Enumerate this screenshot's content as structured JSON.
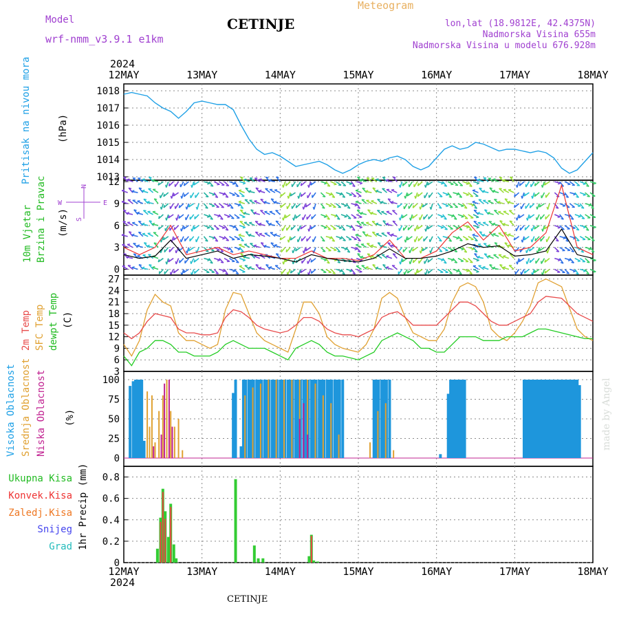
{
  "header": {
    "model_label": "Model",
    "model_name": "wrf-nmm_v3.9.1 e1km",
    "station": "CETINJE",
    "product": "Meteogram",
    "lonlat": "lon,lat (18.9812E, 42.4375N)",
    "elevation": "Nadmorska Visina 655m",
    "model_elevation": "Nadmorska Visina u modelu 676.928m",
    "year_top": "2024",
    "year_bottom": "2024",
    "footer_station": "CETINJE",
    "watermark": "made by Angel"
  },
  "colors": {
    "pressure": "#1ea0e6",
    "wind_label": "#22bb22",
    "wind_speed": "#000000",
    "gust": "#ee3333",
    "t2m": "#e84a4a",
    "sfc": "#e0a030",
    "dewpt": "#22cc22",
    "high_cloud": "#1e96dc",
    "mid_cloud": "#e0a030",
    "low_cloud": "#c02090",
    "total_precip": "#33cc33",
    "conv_precip": "#ee4444",
    "frozen": "#ee7722",
    "snow": "#4444ee",
    "hail": "#22bbbb",
    "purple_text": "#a040d0",
    "orange_text": "#e8b060"
  },
  "chart_data": [
    {
      "type": "line",
      "panel": "pressure",
      "ylabel": "Pritisak na nivou mora",
      "unit": "(hPa)",
      "ylim": [
        1012.8,
        1018.4
      ],
      "yticks": [
        "1013",
        "1014",
        "1015",
        "1016",
        "1017",
        "1018"
      ],
      "xlabels": [
        "12MAY",
        "13MAY",
        "14MAY",
        "15MAY",
        "16MAY",
        "17MAY",
        "18MAY"
      ],
      "grid": true,
      "series": [
        {
          "x": [
            0,
            0.1,
            0.2,
            0.3,
            0.4,
            0.5,
            0.6,
            0.7,
            0.8,
            0.9,
            1.0,
            1.1,
            1.2,
            1.3,
            1.4,
            1.5,
            1.6,
            1.7,
            1.8,
            1.9,
            2.0,
            2.1,
            2.2,
            2.3,
            2.4,
            2.5,
            2.6,
            2.7,
            2.8,
            2.9,
            3.0,
            3.1,
            3.2,
            3.3,
            3.4,
            3.5,
            3.6,
            3.7,
            3.8,
            3.9,
            4.0,
            4.1,
            4.2,
            4.3,
            4.4,
            4.5,
            4.6,
            4.7,
            4.8,
            4.9,
            5.0,
            5.1,
            5.2,
            5.3,
            5.4,
            5.5,
            5.6,
            5.7,
            5.8,
            5.9,
            6.0
          ],
          "y": [
            1017.8,
            1017.9,
            1017.8,
            1017.7,
            1017.3,
            1017.0,
            1016.8,
            1016.4,
            1016.8,
            1017.3,
            1017.4,
            1017.3,
            1017.2,
            1017.2,
            1016.9,
            1016.0,
            1015.2,
            1014.6,
            1014.3,
            1014.4,
            1014.2,
            1013.9,
            1013.6,
            1013.7,
            1013.8,
            1013.9,
            1013.7,
            1013.4,
            1013.2,
            1013.4,
            1013.7,
            1013.9,
            1014.0,
            1013.9,
            1014.1,
            1014.2,
            1014.0,
            1013.6,
            1013.4,
            1013.6,
            1014.1,
            1014.6,
            1014.8,
            1014.6,
            1014.7,
            1015.0,
            1014.9,
            1014.7,
            1014.5,
            1014.6,
            1014.6,
            1014.5,
            1014.4,
            1014.5,
            1014.4,
            1014.1,
            1013.5,
            1013.2,
            1013.4,
            1013.9,
            1014.4
          ]
        }
      ]
    },
    {
      "type": "line",
      "panel": "wind",
      "ylabel": "10m Vjetar Brzina i Pravac",
      "unit": "(m/s)",
      "ylim": [
        -0.8,
        12.2
      ],
      "yticks": [
        "0",
        "3",
        "6",
        "9",
        "12"
      ],
      "compass": "N",
      "series": [
        {
          "name": "speed",
          "x": [
            0,
            0.2,
            0.4,
            0.6,
            0.8,
            1.0,
            1.2,
            1.4,
            1.6,
            1.8,
            2.0,
            2.2,
            2.4,
            2.6,
            2.8,
            3.0,
            3.2,
            3.4,
            3.6,
            3.8,
            4.0,
            4.2,
            4.4,
            4.6,
            4.8,
            5.0,
            5.2,
            5.4,
            5.6,
            5.8,
            6.0
          ],
          "y": [
            2.0,
            1.5,
            1.8,
            4.0,
            1.5,
            2.0,
            2.5,
            1.5,
            2.0,
            1.8,
            1.5,
            1.0,
            2.0,
            1.5,
            1.2,
            1.0,
            1.5,
            2.8,
            1.5,
            1.5,
            1.8,
            2.5,
            3.5,
            3.0,
            3.2,
            1.8,
            2.0,
            2.5,
            5.5,
            2.0,
            1.5
          ]
        },
        {
          "name": "gust",
          "x": [
            0,
            0.2,
            0.4,
            0.6,
            0.8,
            1.0,
            1.2,
            1.4,
            1.6,
            1.8,
            2.0,
            2.2,
            2.4,
            2.6,
            2.8,
            3.0,
            3.2,
            3.4,
            3.6,
            3.8,
            4.0,
            4.2,
            4.4,
            4.6,
            4.8,
            5.0,
            5.2,
            5.4,
            5.6,
            5.8,
            6.0
          ],
          "y": [
            3.0,
            2.0,
            3.0,
            6.0,
            2.0,
            2.5,
            3.0,
            2.0,
            2.5,
            2.0,
            1.5,
            1.5,
            2.5,
            1.5,
            1.5,
            1.2,
            2.0,
            4.0,
            1.5,
            1.5,
            2.5,
            5.0,
            6.5,
            4.0,
            6.0,
            2.5,
            3.0,
            5.0,
            11.5,
            3.0,
            2.0
          ]
        }
      ]
    },
    {
      "type": "line",
      "panel": "temperature",
      "labels": [
        "2m Temp",
        "SFC Temp",
        "dewpt Temp"
      ],
      "unit": "(C)",
      "ylim": [
        3,
        28
      ],
      "yticks": [
        "3",
        "6",
        "9",
        "12",
        "15",
        "18",
        "21",
        "24",
        "27"
      ],
      "series": [
        {
          "name": "2m Temp",
          "x": [
            0,
            0.1,
            0.2,
            0.3,
            0.4,
            0.5,
            0.6,
            0.7,
            0.8,
            0.9,
            1.0,
            1.1,
            1.2,
            1.3,
            1.4,
            1.5,
            1.6,
            1.7,
            1.8,
            1.9,
            2.0,
            2.1,
            2.2,
            2.3,
            2.4,
            2.5,
            2.6,
            2.7,
            2.8,
            2.9,
            3.0,
            3.1,
            3.2,
            3.3,
            3.4,
            3.5,
            3.6,
            3.7,
            3.8,
            3.9,
            4.0,
            4.1,
            4.2,
            4.3,
            4.4,
            4.5,
            4.6,
            4.7,
            4.8,
            4.9,
            5.0,
            5.1,
            5.2,
            5.3,
            5.4,
            5.6,
            5.8,
            5.9,
            6.0
          ],
          "y": [
            13,
            11.5,
            13,
            16,
            18,
            17.5,
            17,
            14,
            13,
            13,
            12.5,
            12.5,
            13,
            17,
            19,
            18.5,
            17,
            15,
            14,
            13.5,
            13,
            13.5,
            15,
            17,
            17,
            16,
            14,
            13,
            12.5,
            12.5,
            12,
            13,
            14,
            17,
            18,
            18.5,
            17,
            15,
            15,
            15,
            15,
            17,
            19,
            21,
            21,
            20,
            18,
            16,
            15,
            15,
            16,
            17,
            18,
            21,
            22.5,
            22,
            18,
            17,
            16
          ]
        },
        {
          "name": "SFC Temp",
          "x": [
            0,
            0.1,
            0.2,
            0.3,
            0.4,
            0.5,
            0.6,
            0.7,
            0.8,
            0.9,
            1.0,
            1.1,
            1.2,
            1.3,
            1.4,
            1.5,
            1.6,
            1.7,
            1.8,
            1.9,
            2.0,
            2.1,
            2.2,
            2.3,
            2.4,
            2.5,
            2.6,
            2.7,
            2.8,
            2.9,
            3.0,
            3.1,
            3.2,
            3.3,
            3.4,
            3.5,
            3.6,
            3.7,
            3.8,
            3.9,
            4.0,
            4.1,
            4.2,
            4.3,
            4.4,
            4.5,
            4.6,
            4.7,
            4.8,
            4.9,
            5.0,
            5.1,
            5.2,
            5.3,
            5.4,
            5.6,
            5.8,
            5.9,
            6.0
          ],
          "y": [
            10,
            7,
            11,
            19,
            23,
            21,
            20,
            13,
            11,
            11,
            10,
            9,
            10,
            19,
            23.5,
            23,
            18,
            13,
            11,
            10,
            9,
            8,
            14,
            21,
            21,
            18,
            12,
            10,
            9,
            8.5,
            8,
            10,
            14,
            22,
            23.5,
            22,
            17,
            13,
            12,
            11,
            11,
            14,
            21,
            25,
            26,
            25,
            21,
            14,
            12,
            11,
            13,
            16,
            20,
            26,
            27,
            25,
            14,
            12,
            11
          ]
        },
        {
          "name": "dewpt Temp",
          "x": [
            0,
            0.1,
            0.2,
            0.3,
            0.4,
            0.5,
            0.6,
            0.7,
            0.8,
            0.9,
            1.0,
            1.1,
            1.2,
            1.3,
            1.4,
            1.5,
            1.6,
            1.7,
            1.8,
            1.9,
            2.0,
            2.1,
            2.2,
            2.3,
            2.4,
            2.5,
            2.6,
            2.7,
            2.8,
            2.9,
            3.0,
            3.1,
            3.2,
            3.3,
            3.4,
            3.5,
            3.6,
            3.7,
            3.8,
            3.9,
            4.0,
            4.1,
            4.2,
            4.3,
            4.4,
            4.5,
            4.6,
            4.7,
            4.8,
            4.9,
            5.0,
            5.1,
            5.2,
            5.3,
            5.4,
            5.6,
            5.8,
            5.9,
            6.0
          ],
          "y": [
            7,
            4.5,
            8,
            9,
            11,
            11,
            10,
            8,
            8,
            7,
            7,
            7,
            8,
            10,
            11,
            10,
            9,
            9,
            9,
            8,
            7,
            6,
            9,
            10,
            11,
            10,
            8,
            7,
            7,
            6.5,
            6,
            7,
            8,
            11,
            12,
            13,
            12,
            11,
            9,
            9,
            8,
            8,
            10,
            12,
            12,
            12,
            11,
            11,
            11,
            12,
            12,
            12,
            13,
            14,
            14,
            13,
            12,
            11.5,
            11.5
          ]
        }
      ]
    },
    {
      "type": "bar",
      "panel": "clouds",
      "labels": [
        "Visoka Oblacnost",
        "Srednja Oblacnost",
        "Niska Oblacnost"
      ],
      "unit": "(%)",
      "ylim": [
        0,
        100
      ],
      "yticks": [
        "0",
        "25",
        "50",
        "75",
        "100"
      ],
      "series": [
        {
          "name": "Visoka Oblacnost",
          "x": [
            0.08,
            0.12,
            0.15,
            0.18,
            0.2,
            0.23,
            0.26,
            1.4,
            1.43,
            1.5,
            1.53,
            1.56,
            1.6,
            1.63,
            1.66,
            1.7,
            1.73,
            1.76,
            1.8,
            1.83,
            1.86,
            1.9,
            1.93,
            1.96,
            2.0,
            2.03,
            2.06,
            2.1,
            2.13,
            2.16,
            2.2,
            2.23,
            2.26,
            2.3,
            2.33,
            2.36,
            2.4,
            2.43,
            2.46,
            2.5,
            2.53,
            2.56,
            2.6,
            2.63,
            2.66,
            2.7,
            2.73,
            2.76,
            2.8,
            3.2,
            3.23,
            3.26,
            3.3,
            3.33,
            3.36,
            3.4,
            4.05,
            4.15,
            4.18,
            4.21,
            4.24,
            4.27,
            4.3,
            4.33,
            4.36,
            5.12,
            5.15,
            5.18,
            5.21,
            5.24,
            5.27,
            5.3,
            5.33,
            5.36,
            5.39,
            5.42,
            5.45,
            5.48,
            5.5,
            5.53,
            5.56,
            5.59,
            5.62,
            5.65,
            5.68,
            5.71,
            5.74,
            5.77,
            5.8,
            5.83
          ],
          "y": [
            92,
            98,
            100,
            100,
            100,
            100,
            22,
            83,
            100,
            15,
            100,
            100,
            100,
            100,
            100,
            100,
            100,
            100,
            100,
            100,
            100,
            100,
            100,
            100,
            100,
            100,
            100,
            100,
            100,
            100,
            100,
            100,
            100,
            100,
            100,
            100,
            100,
            100,
            100,
            100,
            100,
            100,
            100,
            100,
            100,
            100,
            100,
            100,
            100,
            100,
            100,
            100,
            100,
            100,
            100,
            100,
            5,
            82,
            100,
            100,
            100,
            100,
            100,
            100,
            100,
            100,
            100,
            100,
            100,
            100,
            100,
            100,
            100,
            100,
            100,
            100,
            100,
            100,
            100,
            100,
            100,
            100,
            100,
            100,
            100,
            100,
            100,
            100,
            100,
            93
          ]
        },
        {
          "name": "Srednja Oblacnost",
          "x": [
            0.3,
            0.33,
            0.36,
            0.4,
            0.45,
            0.5,
            0.55,
            0.6,
            0.65,
            0.7,
            0.75,
            1.55,
            1.65,
            1.75,
            1.85,
            1.95,
            2.05,
            2.15,
            2.25,
            2.35,
            2.45,
            2.55,
            2.65,
            2.75,
            3.15,
            3.25,
            3.35,
            3.45
          ],
          "y": [
            85,
            40,
            80,
            20,
            60,
            80,
            100,
            60,
            40,
            50,
            10,
            80,
            90,
            95,
            100,
            100,
            100,
            100,
            100,
            100,
            95,
            80,
            70,
            30,
            20,
            60,
            70,
            10
          ]
        },
        {
          "name": "Niska Oblacnost",
          "x": [
            0.38,
            0.48,
            0.52,
            0.58,
            0.62,
            2.25,
            2.3,
            2.35
          ],
          "y": [
            15,
            30,
            95,
            100,
            40,
            50,
            70,
            30
          ]
        }
      ]
    },
    {
      "type": "bar",
      "panel": "precip",
      "labels": [
        "Ukupna Kisa",
        "Konvek.Kisa",
        "Zaledj.Kisa",
        "Snijeg",
        "Grad"
      ],
      "unit": "1hr Precip (mm)",
      "ylim": [
        0,
        0.9
      ],
      "yticks": [
        "0",
        "0.2",
        "0.4",
        "0.6",
        "0.8"
      ],
      "series": [
        {
          "name": "Ukupna Kisa",
          "x": [
            0.43,
            0.47,
            0.5,
            0.53,
            0.57,
            0.6,
            0.64,
            0.67,
            1.43,
            1.67,
            1.72,
            1.78,
            2.37,
            2.4,
            2.43,
            2.48
          ],
          "y": [
            0.13,
            0.42,
            0.69,
            0.48,
            0.24,
            0.55,
            0.17,
            0.04,
            0.78,
            0.16,
            0.04,
            0.04,
            0.06,
            0.26,
            0.02,
            0.01
          ]
        },
        {
          "name": "Konvek.Kisa",
          "x": [
            0.47,
            0.5,
            0.53,
            0.6,
            2.4
          ],
          "y": [
            0.38,
            0.66,
            0.41,
            0.52,
            0.25
          ]
        }
      ]
    }
  ]
}
